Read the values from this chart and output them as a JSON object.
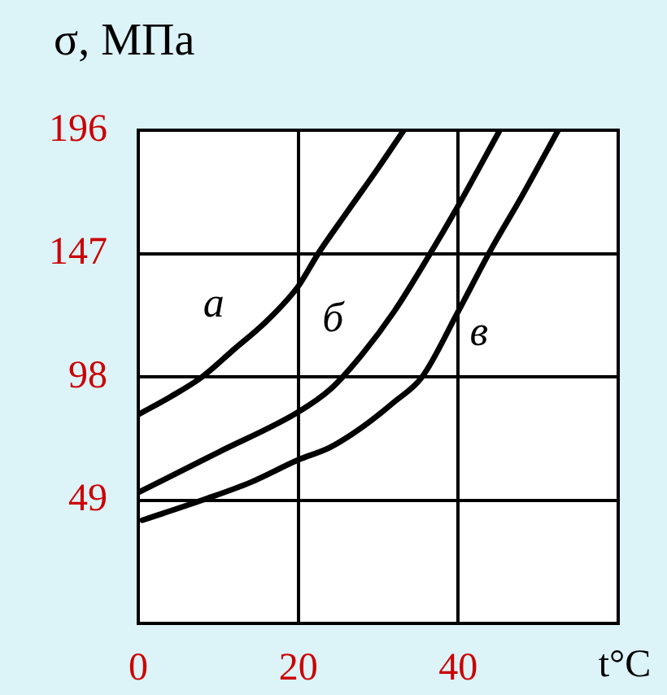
{
  "chart_data": {
    "type": "line",
    "ylabel": "σ, МПа",
    "xlabel": "t°C",
    "xlim": [
      0,
      60
    ],
    "xticks": [
      0,
      20,
      40
    ],
    "ylim": [
      0,
      196
    ],
    "yticks": [
      49,
      98,
      147,
      196
    ],
    "grid": true,
    "marker": "none",
    "line_style": "solid",
    "series": [
      {
        "name": "а",
        "color": "#000000",
        "x": [
          0,
          4,
          8,
          12,
          16,
          20,
          22.5,
          26,
          30,
          33.2
        ],
        "values": [
          83,
          90,
          98,
          109,
          120,
          134,
          147,
          163,
          181,
          196
        ]
      },
      {
        "name": "б",
        "color": "#000000",
        "x": [
          0,
          10,
          20,
          24,
          28,
          32,
          36.5,
          40,
          45.2
        ],
        "values": [
          52,
          68,
          84,
          93,
          107,
          124,
          147,
          166,
          196
        ]
      },
      {
        "name": "в",
        "color": "#000000",
        "x": [
          0.5,
          8,
          14,
          20,
          24,
          28,
          32,
          35.5,
          40,
          44,
          48,
          52.5
        ],
        "values": [
          41,
          49,
          56,
          65,
          70,
          78,
          88,
          98,
          124,
          148,
          170,
          196
        ]
      }
    ]
  }
}
